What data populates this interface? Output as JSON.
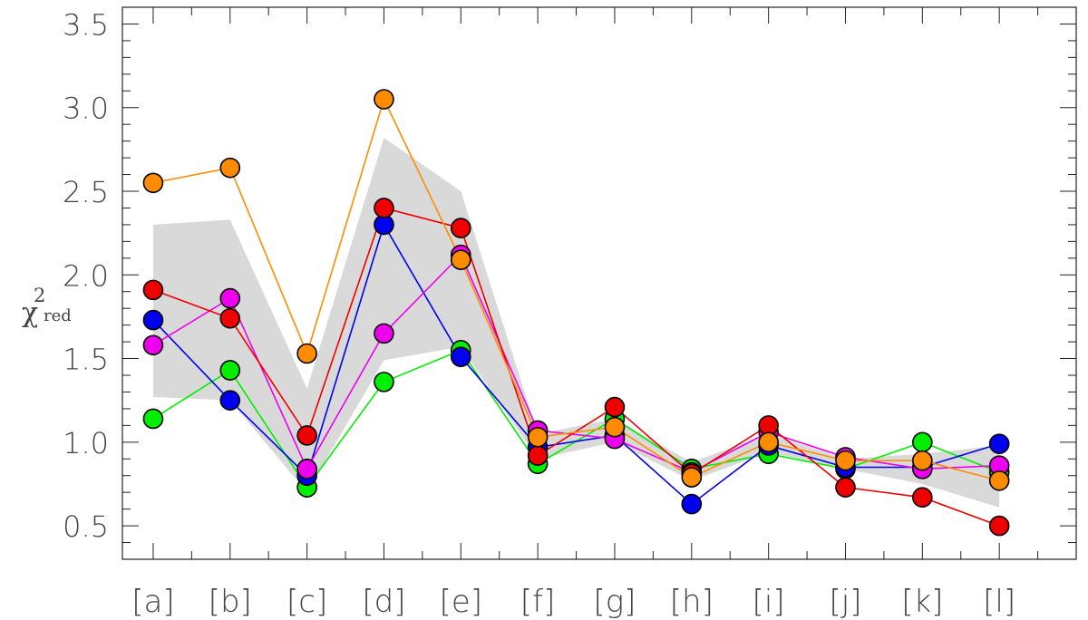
{
  "chart_data": {
    "type": "line",
    "ylabel": {
      "symbol": "χ",
      "superscript": "2",
      "subscript": "red"
    },
    "ylim": [
      0.3,
      3.6
    ],
    "yticks": [
      "0.5",
      "1.0",
      "1.5",
      "2.0",
      "2.5",
      "3.0",
      "3.5"
    ],
    "ytick_values": [
      0.5,
      1.0,
      1.5,
      2.0,
      2.5,
      3.0,
      3.5
    ],
    "categories": [
      "[a]",
      "[b]",
      "[c]",
      "[d]",
      "[e]",
      "[f]",
      "[g]",
      "[h]",
      "[i]",
      "[j]",
      "[k]",
      "[l]"
    ],
    "category_x": [
      1,
      2,
      3,
      4,
      5,
      6,
      7,
      8,
      9,
      10,
      11,
      12
    ],
    "xlim": [
      0.6,
      13.0
    ],
    "grid": false,
    "band": {
      "color": "#d9d9d9",
      "upper": [
        2.3,
        2.33,
        1.32,
        2.82,
        2.5,
        1.05,
        1.14,
        0.88,
        1.05,
        0.9,
        0.93,
        0.98
      ],
      "lower": [
        1.27,
        1.25,
        0.7,
        1.49,
        1.57,
        0.9,
        1.0,
        0.77,
        0.94,
        0.84,
        0.75,
        0.61
      ]
    },
    "series": [
      {
        "color": "#00ee00",
        "values": [
          1.14,
          1.43,
          0.73,
          1.36,
          1.55,
          0.87,
          1.14,
          0.84,
          0.93,
          0.84,
          1.0,
          0.82
        ]
      },
      {
        "color": "#0000ee",
        "values": [
          1.73,
          1.25,
          0.8,
          2.3,
          1.51,
          0.97,
          1.04,
          0.63,
          0.98,
          0.85,
          0.85,
          0.99
        ]
      },
      {
        "color": "#ee00ee",
        "values": [
          1.58,
          1.86,
          0.84,
          1.65,
          2.12,
          1.07,
          1.02,
          0.82,
          1.06,
          0.91,
          0.84,
          0.86
        ]
      },
      {
        "color": "#ee0000",
        "values": [
          1.91,
          1.74,
          1.04,
          2.4,
          2.28,
          0.92,
          1.21,
          0.81,
          1.1,
          0.73,
          0.67,
          0.5
        ]
      },
      {
        "color": "#ff8c00",
        "values": [
          2.55,
          2.64,
          1.53,
          3.05,
          2.09,
          1.03,
          1.09,
          0.79,
          1.0,
          0.89,
          0.89,
          0.77
        ]
      }
    ]
  }
}
